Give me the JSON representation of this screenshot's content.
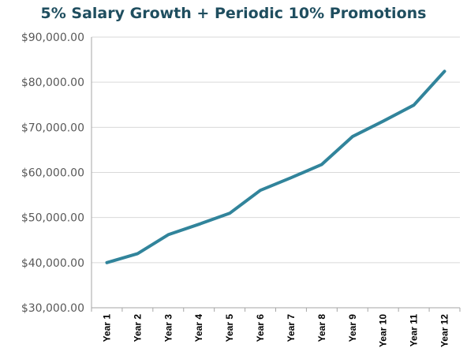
{
  "chart_data": {
    "type": "line",
    "title": "5% Salary Growth + Periodic 10% Promotions",
    "categories": [
      "Year 1",
      "Year 2",
      "Year 3",
      "Year 4",
      "Year 5",
      "Year 6",
      "Year 7",
      "Year 8",
      "Year 9",
      "Year 10",
      "Year 11",
      "Year 12"
    ],
    "series": [
      {
        "values": [
          40000,
          42000,
          46200,
          48510,
          50936,
          56030,
          58831,
          61773,
          67950,
          71348,
          74915,
          82407
        ]
      }
    ],
    "ylim": [
      30000,
      90000
    ],
    "y_ticks": [
      30000,
      40000,
      50000,
      60000,
      70000,
      80000,
      90000
    ],
    "y_tick_labels": [
      "$30,000.00",
      "$40,000.00",
      "$50,000.00",
      "$60,000.00",
      "$70,000.00",
      "$80,000.00",
      "$90,000.00"
    ],
    "xlabel": "",
    "ylabel": "",
    "grid": true,
    "legend": "none",
    "line_color": "#31849b"
  }
}
